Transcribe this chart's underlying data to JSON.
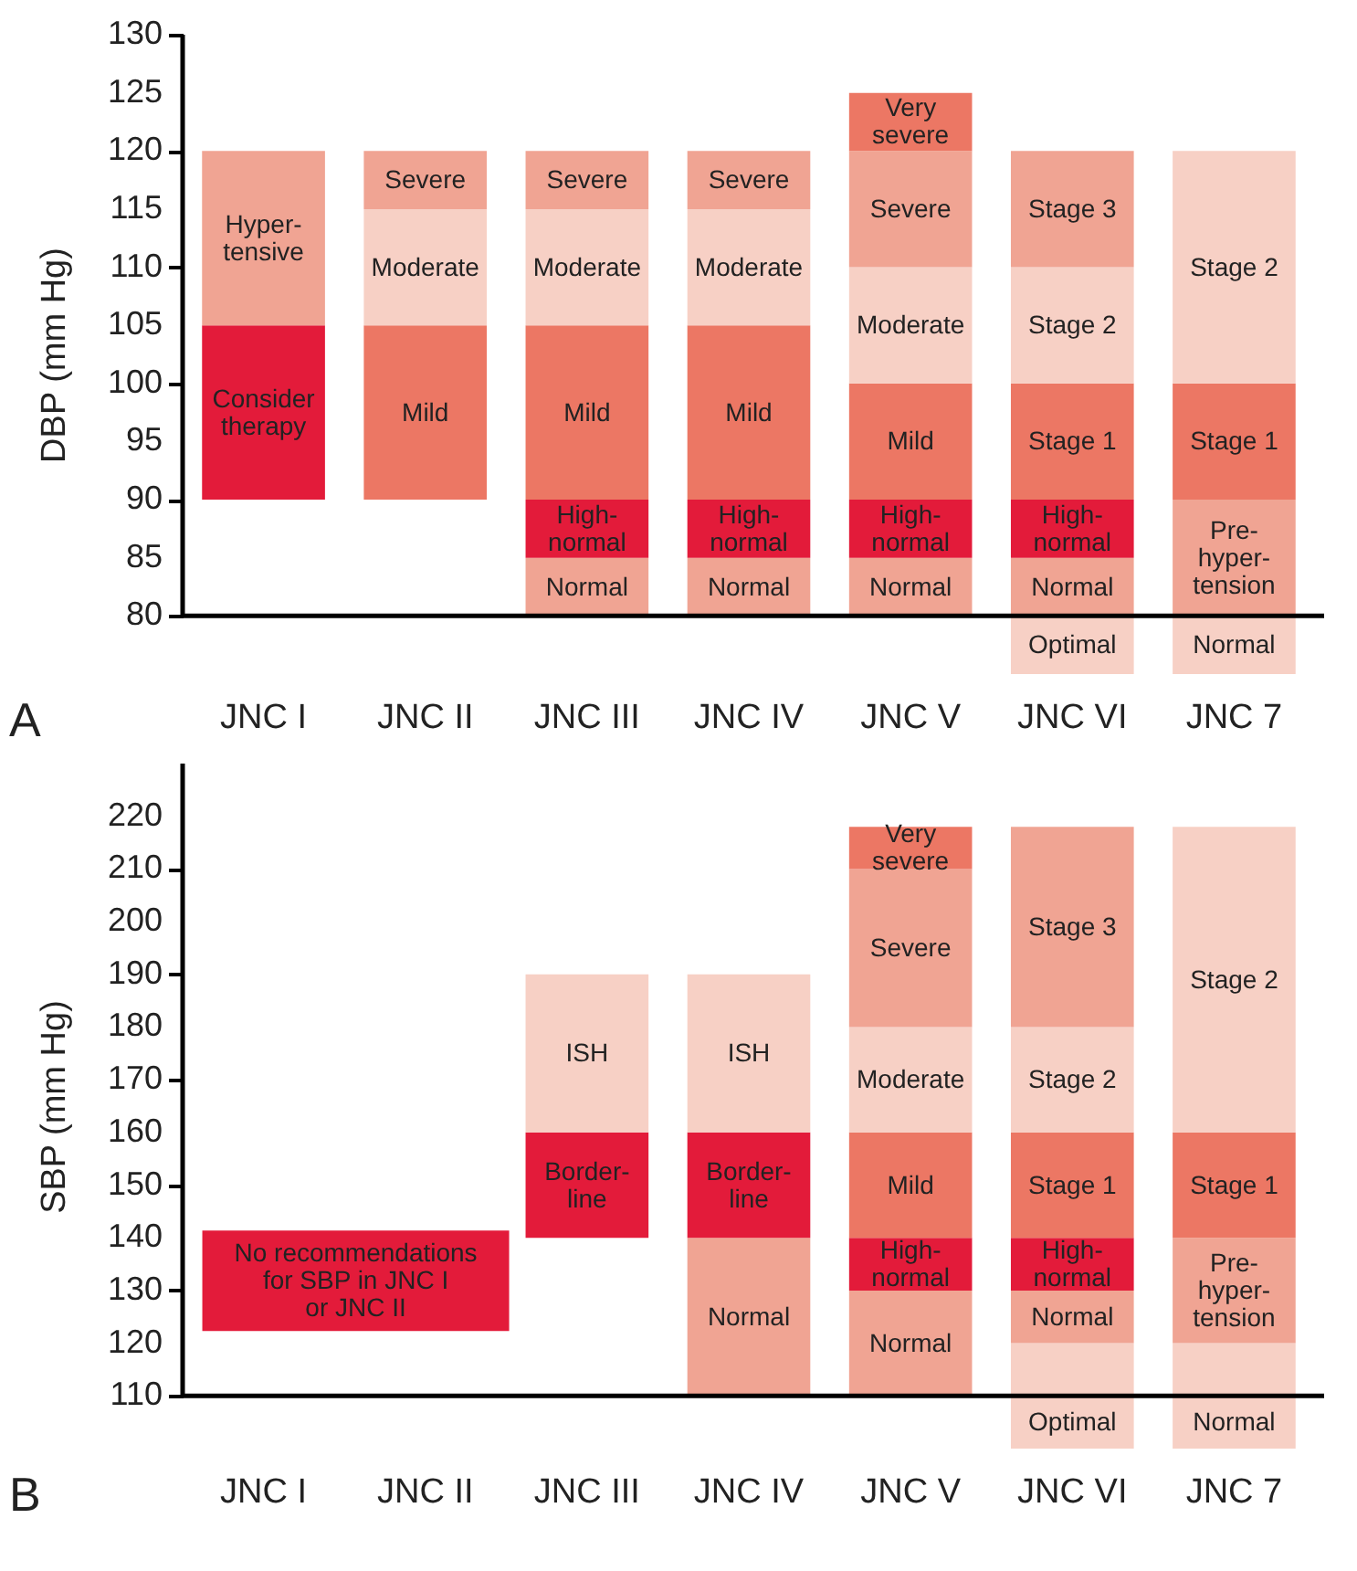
{
  "chart_data": [
    {
      "type": "bar",
      "ylabel": "DBP (mm Hg)",
      "ylim": [
        75,
        130
      ],
      "yticks": [
        80,
        85,
        90,
        95,
        100,
        105,
        110,
        115,
        120,
        125,
        130
      ],
      "grid": false,
      "categories": [
        "JNC I",
        "JNC II",
        "JNC III",
        "JNC IV",
        "JNC V",
        "JNC VI",
        "JNC 7"
      ],
      "series": [
        {
          "base": [
            90,
            90,
            80,
            80,
            80,
            75,
            75
          ],
          "values": [
            15,
            15,
            5,
            5,
            5,
            5,
            5
          ],
          "colors": [
            "#e31b3a",
            "#ec7764",
            "#f0a493",
            "#f0a493",
            "#f0a493",
            "#f7d0c5",
            "#f7d0c5"
          ],
          "value_labels": [
            "Consider\ntherapy",
            "Mild",
            "Normal",
            "Normal",
            "Normal",
            "Optimal",
            "Normal"
          ]
        },
        {
          "base": [
            105,
            105,
            85,
            85,
            85,
            80,
            80
          ],
          "values": [
            15,
            10,
            5,
            5,
            5,
            5,
            10
          ],
          "colors": [
            "#f0a493",
            "#f7d0c5",
            "#e31b3a",
            "#e31b3a",
            "#e31b3a",
            "#f0a493",
            "#f0a493"
          ],
          "value_labels": [
            "Hyper-\ntensive",
            "Moderate",
            "High-\nnormal",
            "High-\nnormal",
            "High-\nnormal",
            "Normal",
            "Pre-\nhyper-\ntension"
          ]
        },
        {
          "base": [
            null,
            115,
            90,
            90,
            90,
            85,
            90
          ],
          "values": [
            null,
            5,
            15,
            15,
            10,
            5,
            10
          ],
          "colors": [
            null,
            "#f0a493",
            "#ec7764",
            "#ec7764",
            "#ec7764",
            "#e31b3a",
            "#ec7764"
          ],
          "value_labels": [
            null,
            "Severe",
            "Mild",
            "Mild",
            "Mild",
            "High-\nnormal",
            "Stage 1"
          ]
        },
        {
          "base": [
            null,
            null,
            105,
            105,
            100,
            90,
            100
          ],
          "values": [
            null,
            null,
            10,
            10,
            10,
            10,
            20
          ],
          "colors": [
            null,
            null,
            "#f7d0c5",
            "#f7d0c5",
            "#f7d0c5",
            "#ec7764",
            "#f7d0c5"
          ],
          "value_labels": [
            null,
            null,
            "Moderate",
            "Moderate",
            "Moderate",
            "Stage 1",
            "Stage 2"
          ]
        },
        {
          "base": [
            null,
            null,
            115,
            115,
            110,
            100,
            null
          ],
          "values": [
            null,
            null,
            5,
            5,
            10,
            10,
            null
          ],
          "colors": [
            null,
            null,
            "#f0a493",
            "#f0a493",
            "#f0a493",
            "#f7d0c5",
            null
          ],
          "value_labels": [
            null,
            null,
            "Severe",
            "Severe",
            "Severe",
            "Stage 2",
            null
          ]
        },
        {
          "base": [
            null,
            null,
            null,
            null,
            120,
            110,
            null
          ],
          "values": [
            null,
            null,
            null,
            null,
            5,
            10,
            null
          ],
          "colors": [
            null,
            null,
            null,
            null,
            "#ec7764",
            "#f0a493",
            null
          ],
          "value_labels": [
            null,
            null,
            null,
            null,
            "Very\nsevere",
            "Stage 3",
            null
          ]
        }
      ],
      "annotations": [
        "A"
      ]
    },
    {
      "type": "bar",
      "ylabel": "SBP (mm Hg)",
      "ylim": [
        100,
        230
      ],
      "yticks": [
        110,
        120,
        130,
        140,
        150,
        160,
        170,
        180,
        190,
        200,
        210,
        220
      ],
      "grid": false,
      "categories": [
        "JNC I",
        "JNC II",
        "JNC III",
        "JNC IV",
        "JNC V",
        "JNC VI",
        "JNC 7"
      ],
      "series": [
        {
          "base": [
            null,
            null,
            140,
            110,
            110,
            100,
            100
          ],
          "values": [
            null,
            null,
            20,
            30,
            20,
            20,
            20
          ],
          "colors": [
            null,
            null,
            "#e31b3a",
            "#f0a493",
            "#f0a493",
            "#f7d0c5",
            "#f7d0c5"
          ],
          "value_labels": [
            null,
            null,
            "Border-\nline",
            "Normal",
            "Normal",
            "Optimal",
            "Normal"
          ]
        },
        {
          "base": [
            null,
            null,
            160,
            140,
            130,
            120,
            120
          ],
          "values": [
            null,
            null,
            30,
            20,
            10,
            10,
            20
          ],
          "colors": [
            null,
            null,
            "#f7d0c5",
            "#e31b3a",
            "#e31b3a",
            "#f0a493",
            "#f0a493"
          ],
          "value_labels": [
            null,
            null,
            "ISH",
            "Border-\nline",
            "High-\nnormal",
            "Normal",
            "Pre-\nhyper-\ntension"
          ]
        },
        {
          "base": [
            null,
            null,
            null,
            160,
            140,
            130,
            140
          ],
          "values": [
            null,
            null,
            null,
            30,
            20,
            10,
            20
          ],
          "colors": [
            null,
            null,
            null,
            "#f7d0c5",
            "#ec7764",
            "#e31b3a",
            "#ec7764"
          ],
          "value_labels": [
            null,
            null,
            null,
            "ISH",
            "Mild",
            "High-\nnormal",
            "Stage 1"
          ]
        },
        {
          "base": [
            null,
            null,
            null,
            null,
            160,
            140,
            160
          ],
          "values": [
            null,
            null,
            null,
            null,
            20,
            20,
            58
          ],
          "colors": [
            null,
            null,
            null,
            null,
            "#f7d0c5",
            "#ec7764",
            "#f7d0c5"
          ],
          "value_labels": [
            null,
            null,
            null,
            null,
            "Moderate",
            "Stage 1",
            "Stage 2"
          ]
        },
        {
          "base": [
            null,
            null,
            null,
            null,
            180,
            160,
            null
          ],
          "values": [
            null,
            null,
            null,
            null,
            30,
            20,
            null
          ],
          "colors": [
            null,
            null,
            null,
            null,
            "#f0a493",
            "#f7d0c5",
            null
          ],
          "value_labels": [
            null,
            null,
            null,
            null,
            "Severe",
            "Stage 2",
            null
          ]
        },
        {
          "base": [
            null,
            null,
            null,
            null,
            210,
            180,
            null
          ],
          "values": [
            null,
            null,
            null,
            null,
            8,
            38,
            null
          ],
          "colors": [
            null,
            null,
            null,
            null,
            "#ec7764",
            "#f0a493",
            null
          ],
          "value_labels": [
            null,
            null,
            null,
            null,
            "Very\nsevere",
            "Stage 3",
            null
          ]
        }
      ],
      "annotations": [
        "B",
        "No recommendations\nfor SBP in JNC I\nor JNC II"
      ]
    }
  ]
}
